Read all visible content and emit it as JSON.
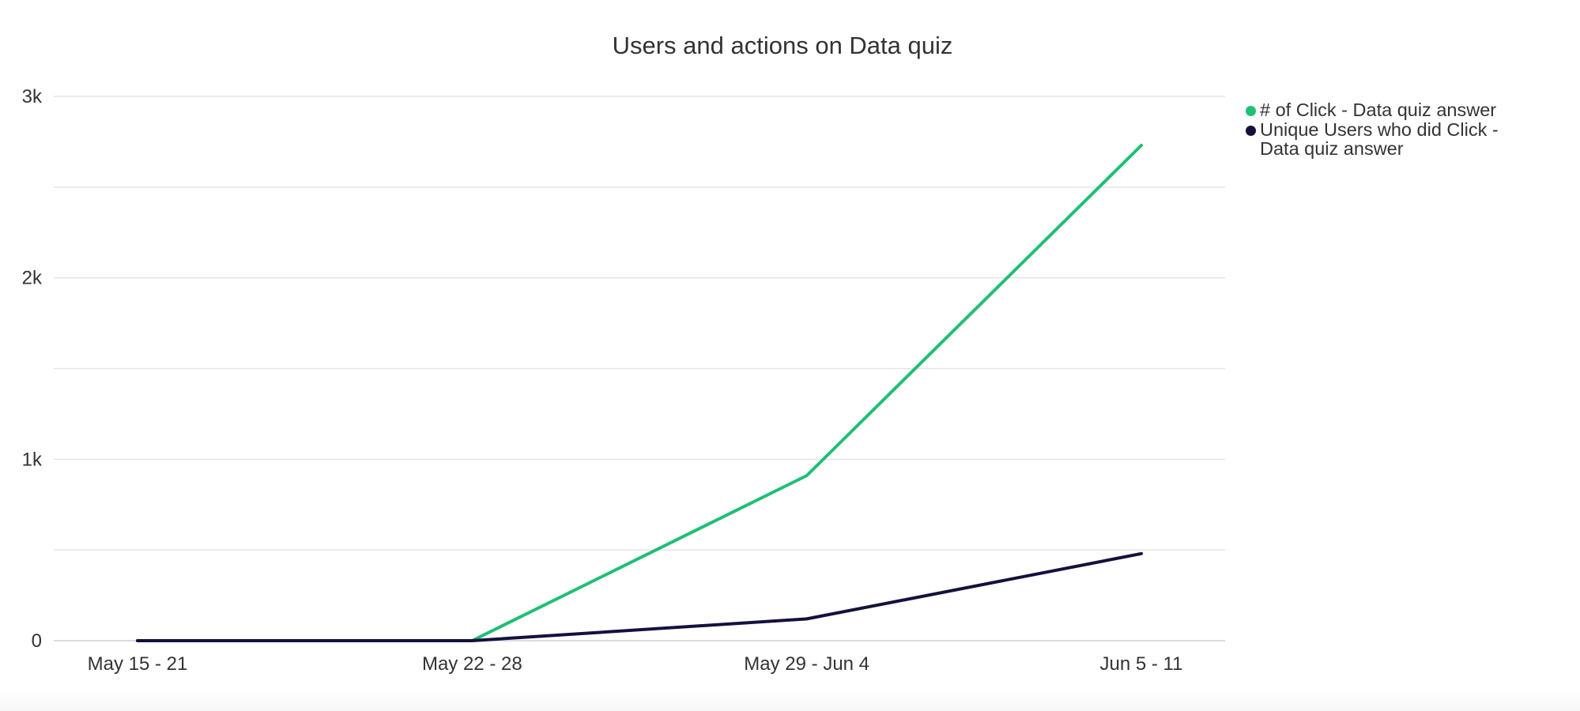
{
  "chart_data": {
    "type": "line",
    "title": "Users and actions on Data quiz",
    "xlabel": "",
    "ylabel": "",
    "categories": [
      "May 15 - 21",
      "May 22 - 28",
      "May 29 - Jun 4",
      "Jun 5 - 11"
    ],
    "ylim": [
      0,
      3000
    ],
    "yticks": [
      0,
      500,
      1000,
      1500,
      2000,
      2500,
      3000
    ],
    "ytick_labels": [
      "0",
      "",
      "1k",
      "",
      "2k",
      "",
      "3k"
    ],
    "grid": true,
    "legend_position": "right-top",
    "series": [
      {
        "name": "# of Click - Data quiz answer",
        "color": "#1fbf75",
        "values": [
          0,
          0,
          910,
          2730
        ]
      },
      {
        "name": "Unique Users who did Click - Data quiz answer",
        "color": "#14113d",
        "values": [
          0,
          0,
          120,
          480
        ]
      }
    ]
  }
}
